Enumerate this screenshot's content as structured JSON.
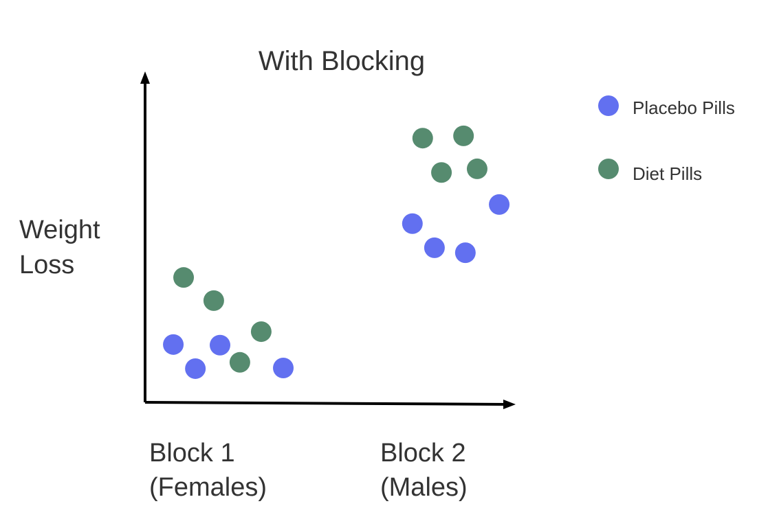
{
  "chart_data": {
    "type": "scatter",
    "title": "With Blocking",
    "ylabel_lines": [
      "Weight",
      "Loss"
    ],
    "xlabel": "",
    "x_tick_labels": [
      {
        "lines": [
          "Block 1",
          "(Females)"
        ],
        "x": 1
      },
      {
        "lines": [
          "Block 2",
          "(Males)"
        ],
        "x": 76
      }
    ],
    "xlim": [
      0,
      100
    ],
    "ylim": [
      0,
      100
    ],
    "grid": false,
    "legend_position": "top-right",
    "series": [
      {
        "name": "Placebo Pills",
        "color": "#6270f0",
        "points": [
          [
            7.3,
            17.5
          ],
          [
            13.3,
            10.2
          ],
          [
            20.0,
            17.3
          ],
          [
            37.2,
            10.4
          ],
          [
            72.3,
            54.1
          ],
          [
            78.3,
            46.8
          ],
          [
            86.7,
            45.3
          ],
          [
            95.9,
            59.9
          ]
        ]
      },
      {
        "name": "Diet Pills",
        "color": "#568b6f",
        "points": [
          [
            10.1,
            37.8
          ],
          [
            18.3,
            30.8
          ],
          [
            31.2,
            21.4
          ],
          [
            25.4,
            12.1
          ],
          [
            75.1,
            80.0
          ],
          [
            86.2,
            80.7
          ],
          [
            80.2,
            69.6
          ],
          [
            89.9,
            70.7
          ]
        ]
      }
    ]
  }
}
